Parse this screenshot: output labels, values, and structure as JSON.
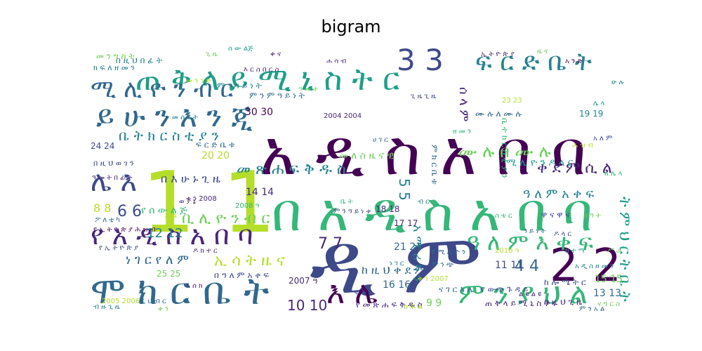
{
  "figure": {
    "title": "bigram"
  },
  "palette": [
    "#440154",
    "#482878",
    "#3e4989",
    "#31688e",
    "#26828e",
    "#1f9e89",
    "#35b779",
    "#6ece58",
    "#b5de2b",
    "#fde725"
  ],
  "words": [
    {
      "text": "ዲ ም",
      "color": "#3e4989"
    },
    {
      "text": "አ ዲ ስ አ በ ባ",
      "color": "#440154"
    },
    {
      "text": "በ አ ዲ ስ አ በ ባ",
      "color": "#35b779"
    },
    {
      "text": "1 1",
      "color": "#b5de2b"
    },
    {
      "text": "ጠ ቅ ላ ይ ሚ ኒ ስ ት ር",
      "color": "#1f9e89"
    },
    {
      "text": "ሞ ክ ር ቤ ት",
      "color": "#31688e"
    },
    {
      "text": "ይ ሁ ን እ ን ጂ",
      "color": "#31688e"
    },
    {
      "text": "የ አ ዲ ስ አ በ ባ",
      "color": "#482878"
    },
    {
      "text": "2 2",
      "color": "#440154"
    },
    {
      "text": "3 3",
      "color": "#3e4989"
    },
    {
      "text": "ፍ ር ድ ቤ ት",
      "color": "#26828e"
    },
    {
      "text": "ሚ ሊ ዮ ን ብ ር",
      "color": "#31688e"
    },
    {
      "text": "ሌ እ",
      "color": "#3e4989"
    },
    {
      "text": "እ ሌ",
      "color": "#440154"
    },
    {
      "text": "ም ን ያ ህ ል",
      "color": "#35b779"
    },
    {
      "text": "ዓ ለ ም እ ቀ ፍ",
      "color": "#35b779"
    },
    {
      "text": "መ ጽ ሐ ፍ ቅ ዱ ስ",
      "color": "#26828e"
    },
    {
      "text": "ቤ ት ክ ር ስ ቲ ያ ን",
      "color": "#26828e"
    },
    {
      "text": "ሙ ሉ በ ሙ ሉ",
      "color": "#6ece58"
    },
    {
      "text": "ቀ ደ ም ሲ ል",
      "color": "#482878"
    },
    {
      "text": "ት ም ህ ር ት ቤ ት",
      "color": "#1f9e89"
    },
    {
      "text": "ቢ ሊ ዮ ን ብ ር",
      "color": "#6ece58"
    },
    {
      "text": "ኢ ሳ ት ዜ ና",
      "color": "#b5de2b"
    },
    {
      "text": "ነ ገ ር የ ለ ም",
      "color": "#31688e"
    },
    {
      "text": "ከ ዚ ህ ቀ ደ ም",
      "color": "#31688e"
    },
    {
      "text": "አ ሜ ሪ ካ ን",
      "color": "#26828e"
    },
    {
      "text": "ሰ ላ ም",
      "color": "#482878"
    },
    {
      "text": "ዓ ለ ም አ ቀ ፍ",
      "color": "#26828e"
    },
    {
      "text": "10 10",
      "color": "#482878"
    },
    {
      "text": "12 12",
      "color": "#26828e"
    },
    {
      "text": "7 7",
      "color": "#482878"
    },
    {
      "text": "4 4",
      "color": "#31688e"
    },
    {
      "text": "6 6",
      "color": "#3e4989"
    },
    {
      "text": "5 5",
      "color": "#26828e"
    },
    {
      "text": "8 8",
      "color": "#b5de2b"
    },
    {
      "text": "9 9",
      "color": "#6ece58"
    },
    {
      "text": "11 11",
      "color": "#3e4989"
    },
    {
      "text": "13 13",
      "color": "#31688e"
    },
    {
      "text": "14 14",
      "color": "#482878"
    },
    {
      "text": "15 15",
      "color": "#6ece58"
    },
    {
      "text": "16 16",
      "color": "#31688e"
    },
    {
      "text": "17 17",
      "color": "#482878"
    },
    {
      "text": "18 18",
      "color": "#482878"
    },
    {
      "text": "19 19",
      "color": "#26828e"
    },
    {
      "text": "20 20",
      "color": "#b5de2b"
    },
    {
      "text": "21 21",
      "color": "#31688e"
    },
    {
      "text": "24 24",
      "color": "#3e4989"
    },
    {
      "text": "25 25",
      "color": "#6ece58"
    },
    {
      "text": "30 30",
      "color": "#440154"
    },
    {
      "text": "በ እ ሁ ኑ ጊ ዜ",
      "color": "#3e4989"
    },
    {
      "text": "የ ሰ ው ል ጅ",
      "color": "#35b779"
    },
    {
      "text": "መ ለ ስ ዜ ና ዊ",
      "color": "#6ece58"
    },
    {
      "text": "ጠ ቅ ላ ይ ሚ ኒ ስ ት ሩ",
      "color": "#482878"
    },
    {
      "text": "የ መ ጽ ሐ ፍ ቅ ዱ ስ",
      "color": "#482878"
    },
    {
      "text": "በ ዓ ለ ም አ ቀ ፍ",
      "color": "#3e4989"
    },
    {
      "text": "የ ውጭ ጉ ዳ ይ",
      "color": "#3e4989"
    },
    {
      "text": "ሙ ሉ ለ ሙ ሉ",
      "color": "#31688e"
    },
    {
      "text": "ም ን ዓ ይ ነ ት",
      "color": "#26828e"
    },
    {
      "text": "እ ር ስ በ ር ስ",
      "color": "#482878"
    },
    {
      "text": "ፍ ር ድ ቤ ቱ",
      "color": "#31688e"
    },
    {
      "text": "ከ ሎ ሜ ት ር",
      "color": "#3e4989"
    },
    {
      "text": "የ ኢ ት ዮ ጵ ያ ሕ ዝ ብ",
      "color": "#440154"
    },
    {
      "text": "በ ዚ ህ ጊ ዜ",
      "color": "#482878"
    },
    {
      "text": "ና ገ ር እ ሌ",
      "color": "#31688e"
    },
    {
      "text": "በ ዚ ህ ወ ገ ን",
      "color": "#3e4989"
    },
    {
      "text": "ቤ ተ ክ ር ስ ቲ ያ ን",
      "color": "#35b779"
    },
    {
      "text": "ፖ ለ ቲ ካ",
      "color": "#31688e"
    },
    {
      "text": "መ ን ግ ስ ት",
      "color": "#6ece58"
    },
    {
      "text": "ብ ዙ ጊ ዜ",
      "color": "#26828e"
    },
    {
      "text": "ወ ያ ኔ",
      "color": "#482878"
    },
    {
      "text": "ሚ ሊ ዮ ን ዶ ላ ር",
      "color": "#1f9e89"
    },
    {
      "text": "ም ክ ር ቤ ቱ",
      "color": "#31688e"
    },
    {
      "text": "ዋ ና ዋ ና",
      "color": "#3e4989"
    },
    {
      "text": "ክ ፍ ለ ዘ መ ን",
      "color": "#26828e"
    },
    {
      "text": "ቀ ን",
      "color": "#6ece58"
    },
    {
      "text": "ክ ፍ ል",
      "color": "#b5de2b"
    },
    {
      "text": "ዓ መ ት በ ፊ ት",
      "color": "#482878"
    },
    {
      "text": "ም ን ም ዓ ይ ነ ት",
      "color": "#31688e"
    },
    {
      "text": "በ ዚ ህ በ ፊ ት",
      "color": "#26828e"
    },
    {
      "text": "ሰ ው ልጅ",
      "color": "#1f9e89"
    },
    {
      "text": "ም ኒ ስ ቴ ር",
      "color": "#35b779"
    },
    {
      "text": "ጊ ዜ",
      "color": "#6ece58"
    },
    {
      "text": "ም ን አ ል",
      "color": "#31688e"
    },
    {
      "text": "ቀ ን 2007",
      "color": "#b5de2b"
    },
    {
      "text": "2008 ዓ",
      "color": "#35b779"
    },
    {
      "text": "2007 ዓ",
      "color": "#482878"
    },
    {
      "text": "2010 ዓ",
      "color": "#b5de2b"
    },
    {
      "text": "ቀ ን 2008",
      "color": "#482878"
    },
    {
      "text": "2005 2006",
      "color": "#b5de2b"
    },
    {
      "text": "2004 2004",
      "color": "#482878"
    },
    {
      "text": "23 23",
      "color": "#b5de2b"
    },
    {
      "text": "ሺ ህ ብ ር",
      "color": "#31688e"
    },
    {
      "text": "የ ሚ ሊ ዮ ን",
      "color": "#31688e"
    },
    {
      "text": "ዶ ላ ር",
      "color": "#3e4989"
    },
    {
      "text": "አ ዲ ስ ዘ መ ን",
      "color": "#26828e"
    },
    {
      "text": "እ ሰ ክ",
      "color": "#482878"
    },
    {
      "text": "ም ን ዓ ይ ነ ቱ",
      "color": "#3e4989"
    },
    {
      "text": "ል ዩ ል ዩ",
      "color": "#482878"
    },
    {
      "text": "የ ኢ ት ዮ ጵ ያ",
      "color": "#3e4989"
    },
    {
      "text": "ና ግ ር ስ",
      "color": "#6ece58"
    },
    {
      "text": "ለ ሌ ላ",
      "color": "#35b779"
    },
    {
      "text": "አ ን ድ",
      "color": "#440154"
    },
    {
      "text": "ሁ ሉ",
      "color": "#26828e"
    },
    {
      "text": "ሌ ላ",
      "color": "#1f9e89"
    },
    {
      "text": "ዓ መ ት",
      "color": "#6ece58"
    },
    {
      "text": "ጊ ዜ ጊ ዜ",
      "color": "#3e4989"
    },
    {
      "text": "መ ሰ ረ ት",
      "color": "#26828e"
    },
    {
      "text": "ሕ ዝ ብ",
      "color": "#b5de2b"
    },
    {
      "text": "ሀ ገ ር",
      "color": "#31688e"
    },
    {
      "text": "ኢ ት ዮ ጵ ያ",
      "color": "#482878"
    },
    {
      "text": "ዜ ና",
      "color": "#6ece58"
    },
    {
      "text": "ቤ ት",
      "color": "#35b779"
    },
    {
      "text": "ብ ር",
      "color": "#26828e"
    },
    {
      "text": "ዶ ክ ተ ር",
      "color": "#482878"
    },
    {
      "text": "ም ን ጭ",
      "color": "#31688e"
    },
    {
      "text": "ሰ ዓ ት",
      "color": "#6ece58"
    },
    {
      "text": "አ ለ ም",
      "color": "#3e4989"
    },
    {
      "text": "ከ ተ ማ",
      "color": "#1f9e89"
    },
    {
      "text": "መ ን ገ ድ",
      "color": "#b5de2b"
    },
    {
      "text": "ቀ ና",
      "color": "#482878"
    },
    {
      "text": "ዘ መ ን",
      "color": "#35b779"
    },
    {
      "text": "ነ ገ ር",
      "color": "#26828e"
    },
    {
      "text": "ዓ ይ ነ ት",
      "color": "#31688e"
    },
    {
      "text": "ሥ ራ",
      "color": "#6ece58"
    },
    {
      "text": "ሐ ሳ ብ",
      "color": "#482878"
    },
    {
      "text": "ቃ ል",
      "color": "#b5de2b"
    },
    {
      "text": "ፍ ቅ ር",
      "color": "#3e4989"
    }
  ]
}
